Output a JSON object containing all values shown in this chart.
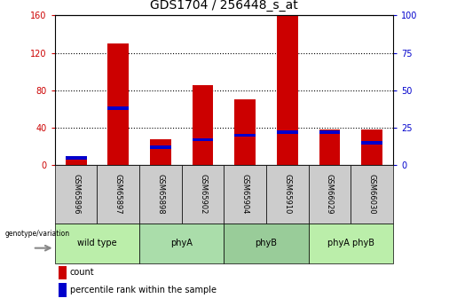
{
  "title": "GDS1704 / 256448_s_at",
  "samples": [
    "GSM65896",
    "GSM65897",
    "GSM65898",
    "GSM65902",
    "GSM65904",
    "GSM65910",
    "GSM66029",
    "GSM66030"
  ],
  "counts": [
    10,
    130,
    28,
    85,
    70,
    160,
    38,
    38
  ],
  "percentiles": [
    5,
    38,
    12,
    17,
    20,
    22,
    22,
    15
  ],
  "groups": [
    {
      "label": "wild type",
      "start": 0,
      "end": 2,
      "color": "#bbeeaa"
    },
    {
      "label": "phyA",
      "start": 2,
      "end": 4,
      "color": "#aaddaa"
    },
    {
      "label": "phyB",
      "start": 4,
      "end": 6,
      "color": "#99cc99"
    },
    {
      "label": "phyA phyB",
      "start": 6,
      "end": 8,
      "color": "#bbeeaa"
    }
  ],
  "bar_color_red": "#cc0000",
  "bar_color_blue": "#0000cc",
  "bar_width": 0.5,
  "ylim_left": [
    0,
    160
  ],
  "ylim_right": [
    0,
    100
  ],
  "yticks_left": [
    0,
    40,
    80,
    120,
    160
  ],
  "yticks_right": [
    0,
    25,
    50,
    75,
    100
  ],
  "grid_color": "#000000",
  "sample_box_color": "#cccccc",
  "genotype_label": "genotype/variation",
  "legend_count": "count",
  "legend_percentile": "percentile rank within the sample",
  "title_fontsize": 10,
  "tick_fontsize": 7,
  "label_fontsize": 7
}
